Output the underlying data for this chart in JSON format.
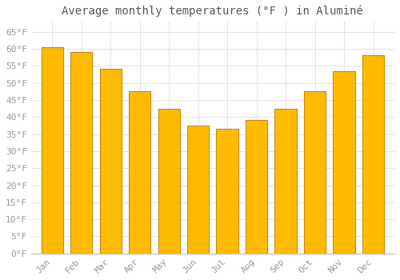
{
  "title": "Average monthly temperatures (°F ) in Aluminé",
  "months": [
    "Jan",
    "Feb",
    "Mar",
    "Apr",
    "May",
    "Jun",
    "Jul",
    "Aug",
    "Sep",
    "Oct",
    "Nov",
    "Dec"
  ],
  "values": [
    60.5,
    59.0,
    54.0,
    47.5,
    42.5,
    37.5,
    36.5,
    39.0,
    42.5,
    47.5,
    53.5,
    58.0
  ],
  "bar_color": "#FFBB00",
  "bar_edge_color": "#CC8800",
  "background_color": "#FFFFFF",
  "grid_color": "#DDDDDD",
  "text_color": "#999999",
  "title_color": "#555555",
  "ylim": [
    0,
    68
  ],
  "yticks": [
    0,
    5,
    10,
    15,
    20,
    25,
    30,
    35,
    40,
    45,
    50,
    55,
    60,
    65
  ],
  "title_fontsize": 10,
  "tick_fontsize": 8
}
